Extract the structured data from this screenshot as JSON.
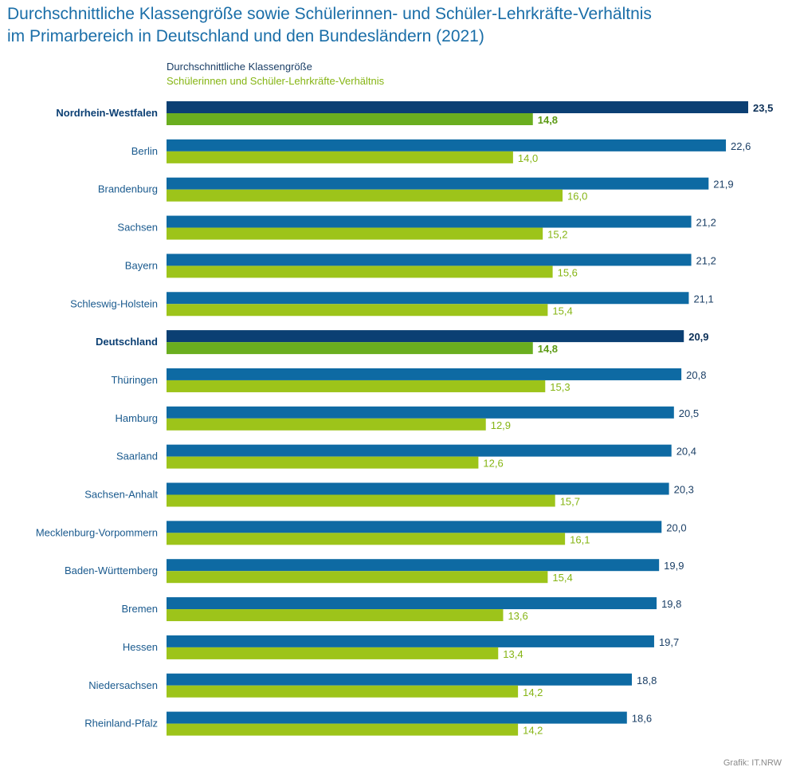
{
  "chart_data": {
    "type": "bar",
    "orientation": "horizontal",
    "title_line1": "Durchschnittliche Klassengröße sowie Schülerinnen- und Schüler-Lehrkräfte-Verhältnis",
    "title_line2": "im Primarbereich in Deutschland und den Bundesländern (2021)",
    "categories": [
      "Nordrhein-Westfalen",
      "Berlin",
      "Brandenburg",
      "Sachsen",
      "Bayern",
      "Schleswig-Holstein",
      "Deutschland",
      "Thüringen",
      "Hamburg",
      "Saarland",
      "Sachsen-Anhalt",
      "Mecklenburg-Vorpommern",
      "Baden-Württemberg",
      "Bremen",
      "Hessen",
      "Niedersachsen",
      "Rheinland-Pfalz"
    ],
    "highlighted": [
      "Nordrhein-Westfalen",
      "Deutschland"
    ],
    "series": [
      {
        "name": "Durchschnittliche Klassengröße",
        "color": "#0e6aa3",
        "highlight_color": "#0b3f73",
        "values": [
          23.5,
          22.6,
          21.9,
          21.2,
          21.2,
          21.1,
          20.9,
          20.8,
          20.5,
          20.4,
          20.3,
          20.0,
          19.9,
          19.8,
          19.7,
          18.8,
          18.6
        ],
        "labels": [
          "23,5",
          "22,6",
          "21,9",
          "21,2",
          "21,2",
          "21,1",
          "20,9",
          "20,8",
          "20,5",
          "20,4",
          "20,3",
          "20,0",
          "19,9",
          "19,8",
          "19,7",
          "18,8",
          "18,6"
        ]
      },
      {
        "name": "Schülerinnen und Schüler-Lehrkräfte-Verhältnis",
        "color": "#9dc41a",
        "highlight_color": "#6aae1f",
        "values": [
          14.8,
          14.0,
          16.0,
          15.2,
          15.6,
          15.4,
          14.8,
          15.3,
          12.9,
          12.6,
          15.7,
          16.1,
          15.4,
          13.6,
          13.4,
          14.2,
          14.2
        ],
        "labels": [
          "14,8",
          "14,0",
          "16,0",
          "15,2",
          "15,6",
          "15,4",
          "14,8",
          "15,3",
          "12,9",
          "12,6",
          "15,7",
          "16,1",
          "15,4",
          "13,6",
          "13,4",
          "14,2",
          "14,2"
        ]
      }
    ],
    "xlim": [
      0,
      23.5
    ],
    "grid": false,
    "legend_position": "top-left",
    "label_color": "#1a5a8e",
    "source": "Grafik: IT.NRW"
  }
}
